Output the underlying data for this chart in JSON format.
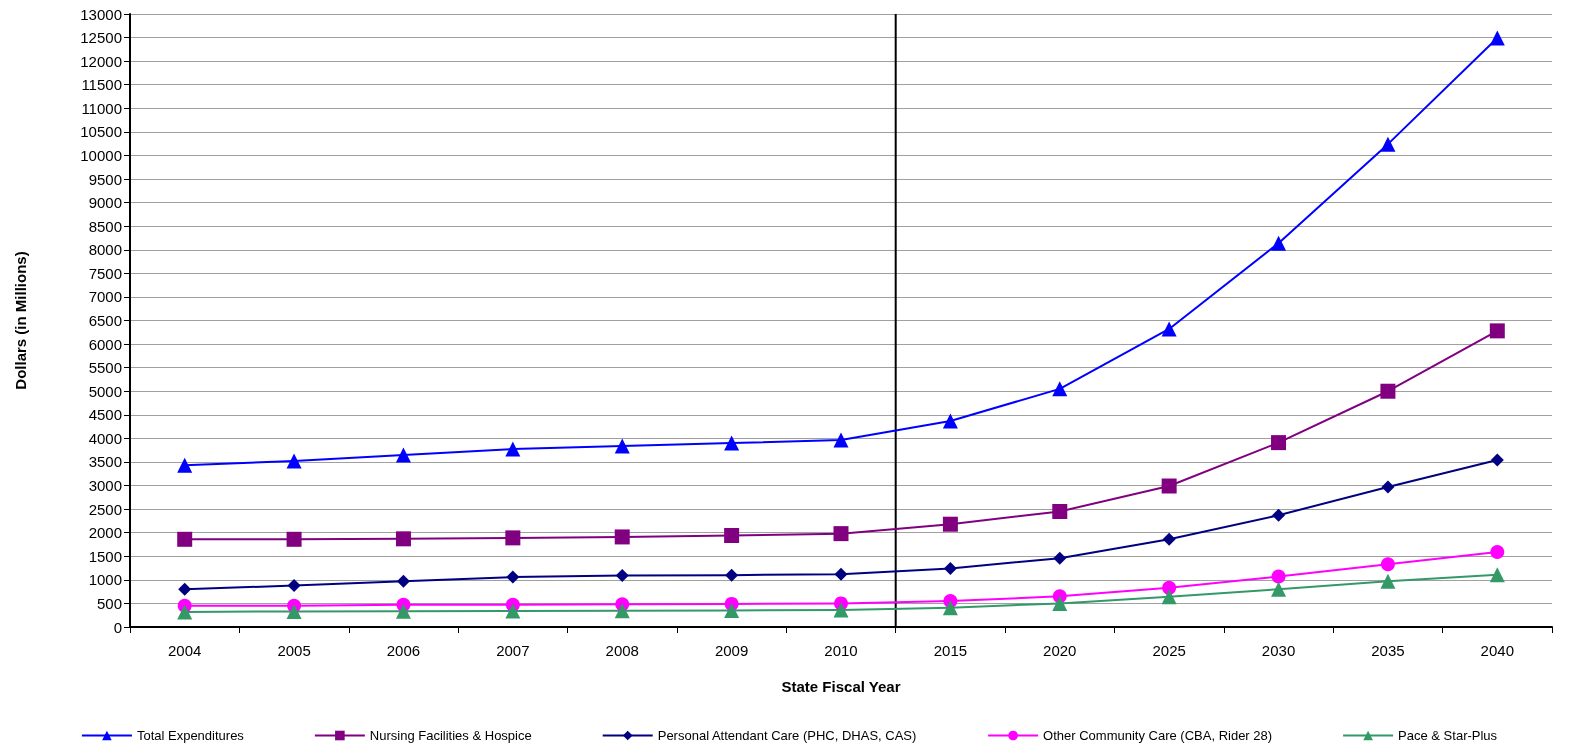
{
  "chart_data": {
    "type": "line",
    "xlabel": "State Fiscal Year",
    "ylabel": "Dollars (in Millions)",
    "categories": [
      "2004",
      "2005",
      "2006",
      "2007",
      "2008",
      "2009",
      "2010",
      "2015",
      "2020",
      "2025",
      "2030",
      "2035",
      "2040"
    ],
    "series": [
      {
        "name": "Total Expenditures",
        "color": "#0000ff",
        "marker": "triangle",
        "values": [
          3430,
          3520,
          3650,
          3775,
          3840,
          3900,
          3965,
          4370,
          5050,
          6320,
          8140,
          10240,
          12490
        ]
      },
      {
        "name": "Nursing Facilities & Hospice",
        "color": "#800080",
        "marker": "square",
        "values": [
          1860,
          1860,
          1870,
          1890,
          1910,
          1940,
          1980,
          2180,
          2450,
          2990,
          3910,
          5000,
          6280
        ]
      },
      {
        "name": "Personal Attendant Care (PHC, DHAS, CAS)",
        "color": "#000080",
        "marker": "diamond",
        "values": [
          800,
          880,
          970,
          1060,
          1090,
          1100,
          1120,
          1240,
          1460,
          1860,
          2370,
          2970,
          3540
        ]
      },
      {
        "name": "Other Community Care (CBA, Rider 28)",
        "color": "#ff00ff",
        "marker": "circle",
        "values": [
          450,
          450,
          470,
          470,
          480,
          490,
          500,
          550,
          650,
          830,
          1070,
          1330,
          1590
        ]
      },
      {
        "name": "Pace & Star-Plus",
        "color": "#339966",
        "marker": "triangle",
        "values": [
          320,
          330,
          335,
          340,
          345,
          350,
          360,
          410,
          500,
          640,
          800,
          970,
          1110
        ]
      }
    ],
    "ylim": [
      0,
      13000
    ],
    "yticks": [
      0,
      500,
      1000,
      1500,
      2000,
      2500,
      3000,
      3500,
      4000,
      4500,
      5000,
      5500,
      6000,
      6500,
      7000,
      7500,
      8000,
      8500,
      9000,
      9500,
      10000,
      10500,
      11000,
      11500,
      12000,
      12500,
      13000
    ],
    "grid": "y",
    "legend": "bottom",
    "ref_lines": [
      {
        "axis": "x",
        "value": "2010",
        "color": "#000000",
        "line_style": "solid"
      }
    ]
  }
}
